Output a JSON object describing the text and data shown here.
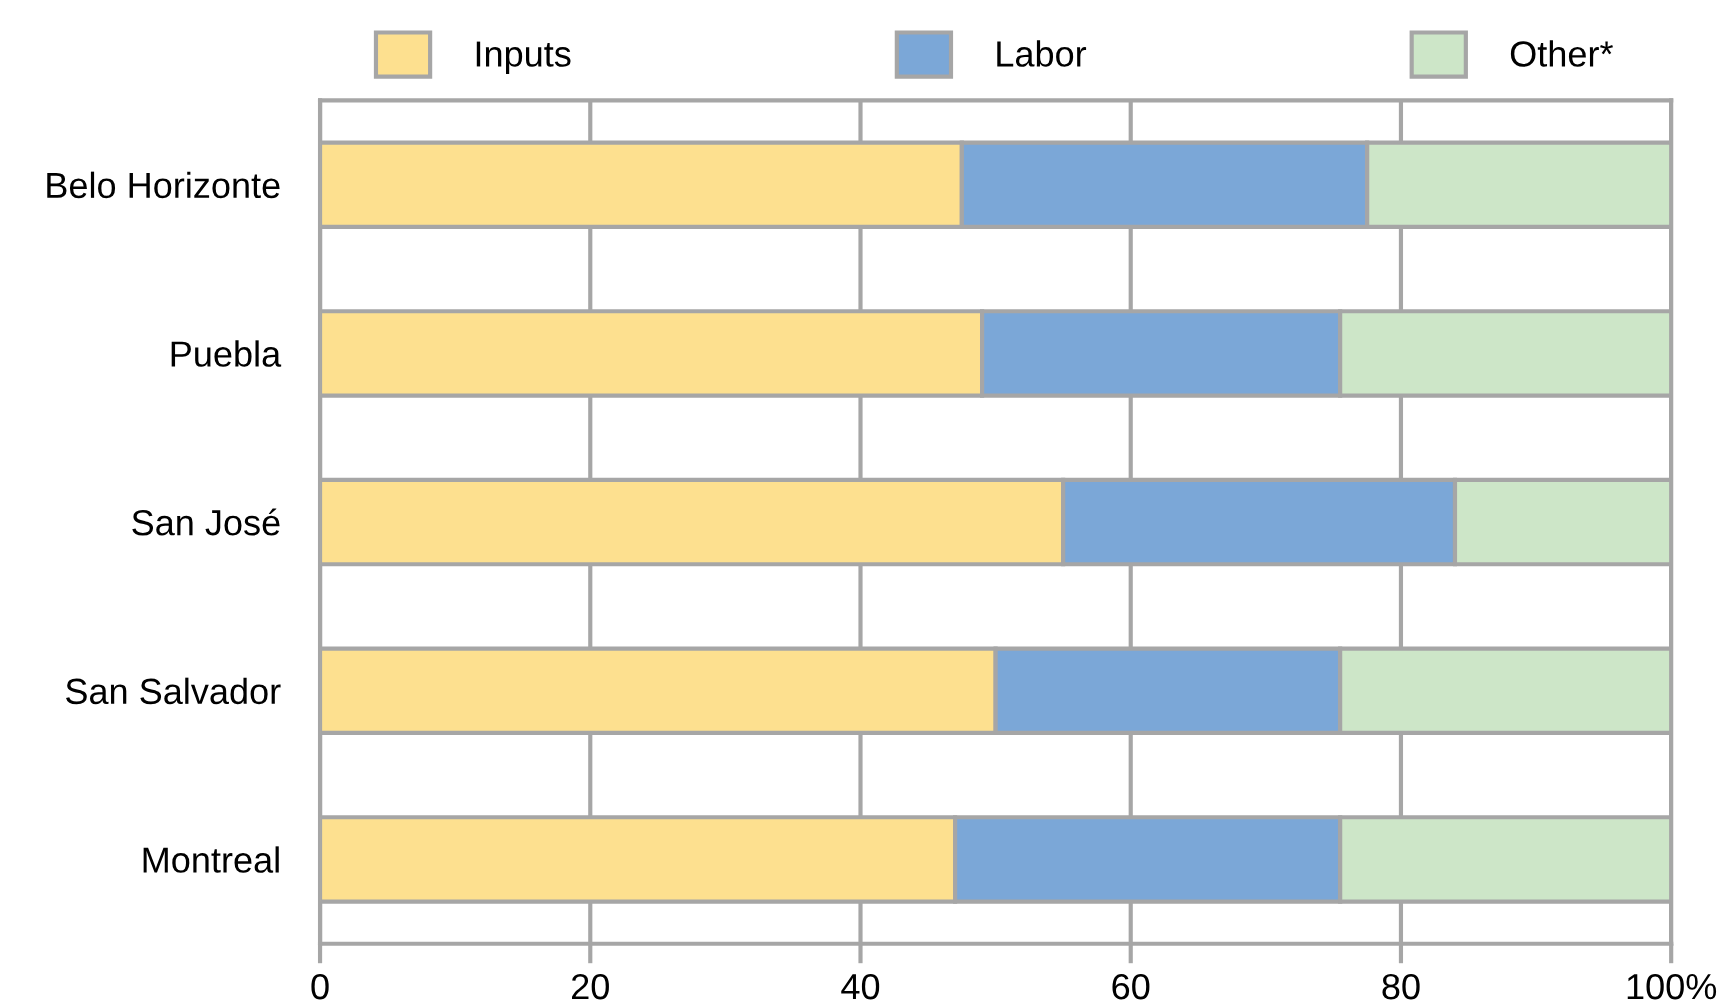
{
  "chart_data": {
    "type": "bar",
    "orientation": "horizontal",
    "stacked": true,
    "categories": [
      "Belo Horizonte",
      "Puebla",
      "San José",
      "San Salvador",
      "Montreal"
    ],
    "series": [
      {
        "name": "Inputs",
        "color": "#fde08f",
        "values": [
          47.5,
          49,
          55,
          50,
          47
        ]
      },
      {
        "name": "Labor",
        "color": "#7ba7d7",
        "values": [
          30,
          26.5,
          29,
          25.5,
          28.5
        ]
      },
      {
        "name": "Other*",
        "color": "#cde6c8",
        "values": [
          22.5,
          24.5,
          16,
          24.5,
          24.5
        ]
      }
    ],
    "xlim": [
      0,
      100
    ],
    "xticks": [
      0,
      20,
      40,
      60,
      {
        "value": 80,
        "label": "80"
      },
      {
        "value": 100,
        "label": "100%"
      }
    ],
    "grid": "x",
    "legend": "top"
  }
}
